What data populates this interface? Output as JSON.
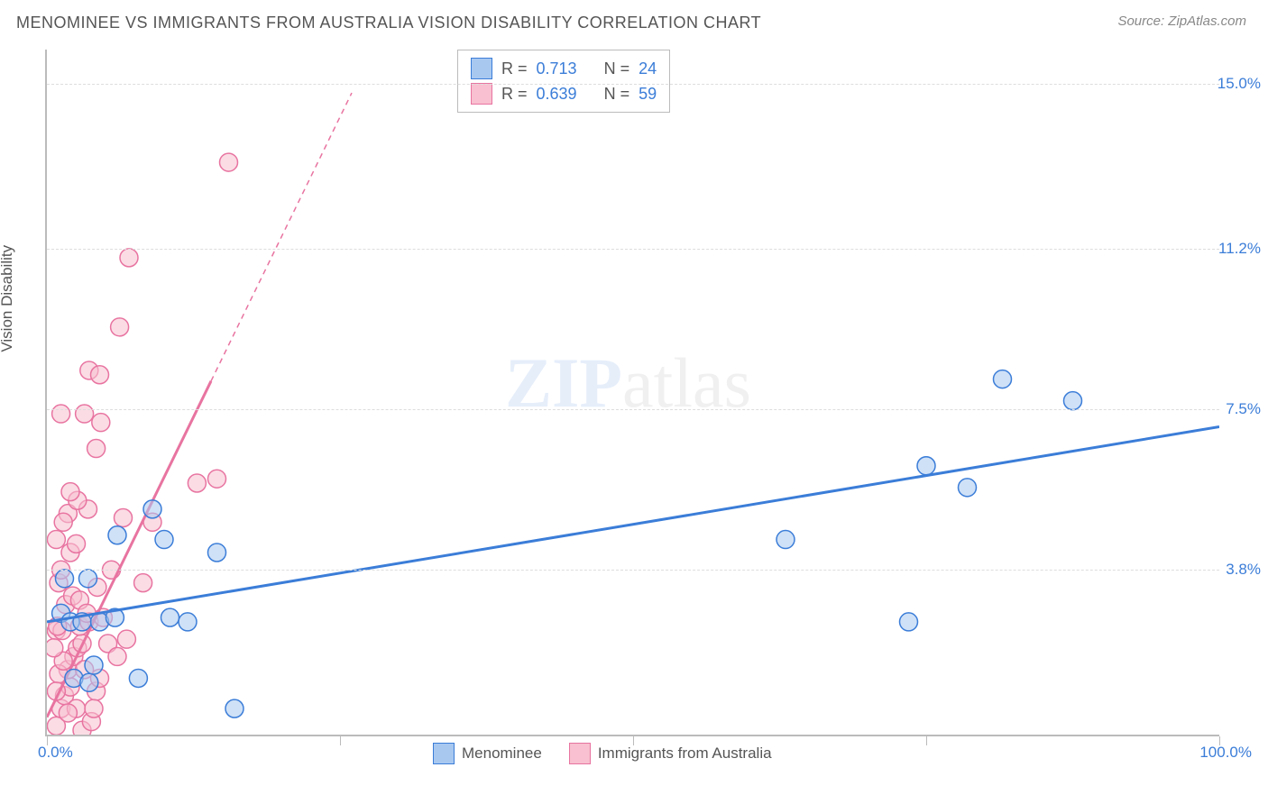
{
  "title": "MENOMINEE VS IMMIGRANTS FROM AUSTRALIA VISION DISABILITY CORRELATION CHART",
  "source": "Source: ZipAtlas.com",
  "y_axis_label": "Vision Disability",
  "watermark_bold": "ZIP",
  "watermark_light": "atlas",
  "chart": {
    "type": "scatter",
    "xlim": [
      0,
      100
    ],
    "ylim": [
      0,
      15.8
    ],
    "x_ticks": [
      0,
      25,
      50,
      75,
      100
    ],
    "x_tick_labels": {
      "0": "0.0%",
      "100": "100.0%"
    },
    "y_gridlines": [
      3.8,
      7.5,
      11.2,
      15.0
    ],
    "y_tick_labels": [
      "3.8%",
      "7.5%",
      "11.2%",
      "15.0%"
    ],
    "background_color": "#ffffff",
    "grid_color": "#dddddd",
    "axis_color": "#bbbbbb",
    "marker_radius": 10,
    "marker_opacity": 0.55,
    "line_width": 3
  },
  "series": {
    "blue": {
      "name": "Menominee",
      "color_fill": "#a8c8f0",
      "color_stroke": "#3b7dd8",
      "r_value": "0.713",
      "n_value": "24",
      "trend": {
        "x1": 0,
        "y1": 2.6,
        "x2": 100,
        "y2": 7.1,
        "dashed_from_x": null
      },
      "points": [
        [
          1.2,
          2.8
        ],
        [
          2.0,
          2.6
        ],
        [
          3.0,
          2.6
        ],
        [
          4.5,
          2.6
        ],
        [
          5.8,
          2.7
        ],
        [
          2.3,
          1.3
        ],
        [
          3.6,
          1.2
        ],
        [
          4.0,
          1.6
        ],
        [
          7.8,
          1.3
        ],
        [
          1.5,
          3.6
        ],
        [
          16.0,
          0.6
        ],
        [
          10.5,
          2.7
        ],
        [
          12.0,
          2.6
        ],
        [
          10.0,
          4.5
        ],
        [
          14.5,
          4.2
        ],
        [
          9.0,
          5.2
        ],
        [
          63.0,
          4.5
        ],
        [
          73.5,
          2.6
        ],
        [
          75.0,
          6.2
        ],
        [
          78.5,
          5.7
        ],
        [
          81.5,
          8.2
        ],
        [
          87.5,
          7.7
        ],
        [
          3.5,
          3.6
        ],
        [
          6.0,
          4.6
        ]
      ]
    },
    "pink": {
      "name": "Immigrants from Australia",
      "color_fill": "#f8c0d0",
      "color_stroke": "#e874a0",
      "r_value": "0.639",
      "n_value": "59",
      "trend": {
        "x1": 0,
        "y1": 0.4,
        "x2": 26,
        "y2": 14.8,
        "dashed_from_x": 14
      },
      "points": [
        [
          0.8,
          0.2
        ],
        [
          1.2,
          0.6
        ],
        [
          1.5,
          0.9
        ],
        [
          2.0,
          1.1
        ],
        [
          1.8,
          1.5
        ],
        [
          2.3,
          1.8
        ],
        [
          2.6,
          2.0
        ],
        [
          3.0,
          2.1
        ],
        [
          0.8,
          2.4
        ],
        [
          1.3,
          2.4
        ],
        [
          2.8,
          2.5
        ],
        [
          3.6,
          2.6
        ],
        [
          3.0,
          0.1
        ],
        [
          4.2,
          1.0
        ],
        [
          4.5,
          1.3
        ],
        [
          1.0,
          1.4
        ],
        [
          1.4,
          1.7
        ],
        [
          3.2,
          1.5
        ],
        [
          4.8,
          2.7
        ],
        [
          4.3,
          3.4
        ],
        [
          5.5,
          3.8
        ],
        [
          2.0,
          4.2
        ],
        [
          2.5,
          4.4
        ],
        [
          1.8,
          5.1
        ],
        [
          3.5,
          5.2
        ],
        [
          2.6,
          5.4
        ],
        [
          8.2,
          3.5
        ],
        [
          6.5,
          5.0
        ],
        [
          9.0,
          4.9
        ],
        [
          4.2,
          6.6
        ],
        [
          3.2,
          7.4
        ],
        [
          4.6,
          7.2
        ],
        [
          1.2,
          7.4
        ],
        [
          3.6,
          8.4
        ],
        [
          4.5,
          8.3
        ],
        [
          6.2,
          9.4
        ],
        [
          12.8,
          5.8
        ],
        [
          14.5,
          5.9
        ],
        [
          15.5,
          13.2
        ],
        [
          7.0,
          11.0
        ],
        [
          0.6,
          2.0
        ],
        [
          0.9,
          2.5
        ],
        [
          1.6,
          3.0
        ],
        [
          2.2,
          3.2
        ],
        [
          1.0,
          3.5
        ],
        [
          0.8,
          1.0
        ],
        [
          2.5,
          0.6
        ],
        [
          3.8,
          0.3
        ],
        [
          1.8,
          0.5
        ],
        [
          4.0,
          0.6
        ],
        [
          5.2,
          2.1
        ],
        [
          6.0,
          1.8
        ],
        [
          1.4,
          4.9
        ],
        [
          2.0,
          5.6
        ],
        [
          0.8,
          4.5
        ],
        [
          1.2,
          3.8
        ],
        [
          2.8,
          3.1
        ],
        [
          3.4,
          2.8
        ],
        [
          6.8,
          2.2
        ]
      ]
    }
  },
  "legend_top": {
    "r_label": "R  =",
    "n_label": "N  ="
  },
  "legend_bottom": {
    "blue_label": "Menominee",
    "pink_label": "Immigrants from Australia"
  }
}
